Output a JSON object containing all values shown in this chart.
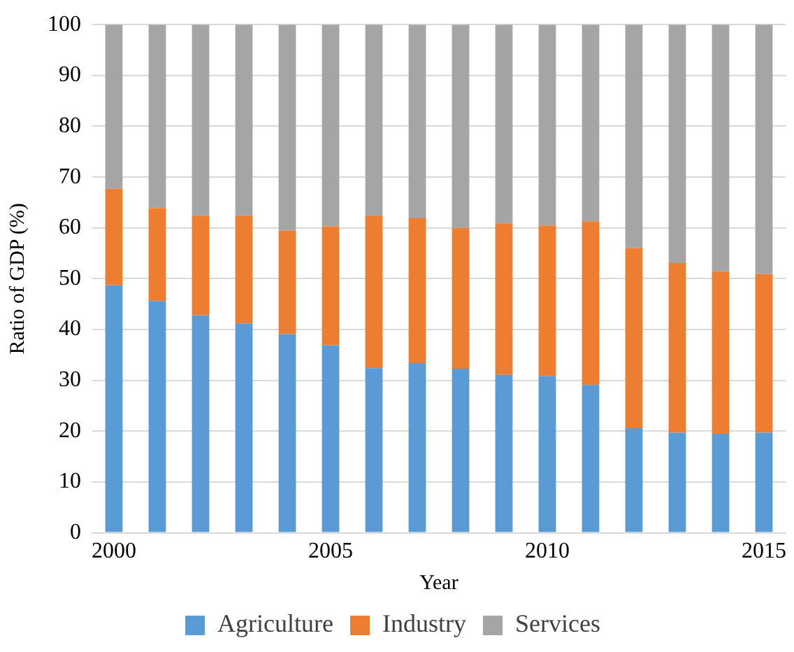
{
  "chart_data": {
    "type": "bar",
    "stacked": true,
    "xlabel": "Year",
    "ylabel": "Ratio of GDP (%)",
    "categories": [
      "2000",
      null,
      null,
      null,
      null,
      "2005",
      null,
      null,
      null,
      null,
      "2010",
      null,
      null,
      null,
      null,
      "2015"
    ],
    "series": [
      {
        "name": "Agriculture",
        "color": "#5b9bd5",
        "values": [
          48.7,
          45.6,
          42.8,
          41.2,
          39.1,
          36.9,
          32.4,
          33.4,
          32.3,
          31.1,
          30.8,
          29.1,
          20.6,
          19.7,
          19.5,
          19.7
        ]
      },
      {
        "name": "Industry",
        "color": "#ed7d31",
        "values": [
          19.0,
          18.3,
          19.6,
          21.2,
          20.4,
          23.4,
          30.0,
          28.5,
          27.7,
          29.8,
          29.7,
          32.2,
          35.4,
          33.4,
          31.9,
          31.2
        ]
      },
      {
        "name": "Services",
        "color": "#a5a5a5",
        "values": [
          32.3,
          36.1,
          37.6,
          37.6,
          40.5,
          39.7,
          37.6,
          38.1,
          40.0,
          39.1,
          39.5,
          38.7,
          44.0,
          46.9,
          48.6,
          49.1
        ]
      }
    ],
    "ylim": [
      0,
      100
    ],
    "yticks": [
      0,
      10,
      20,
      30,
      40,
      50,
      60,
      70,
      80,
      90,
      100
    ],
    "grid": "y",
    "legend": "bottom"
  }
}
